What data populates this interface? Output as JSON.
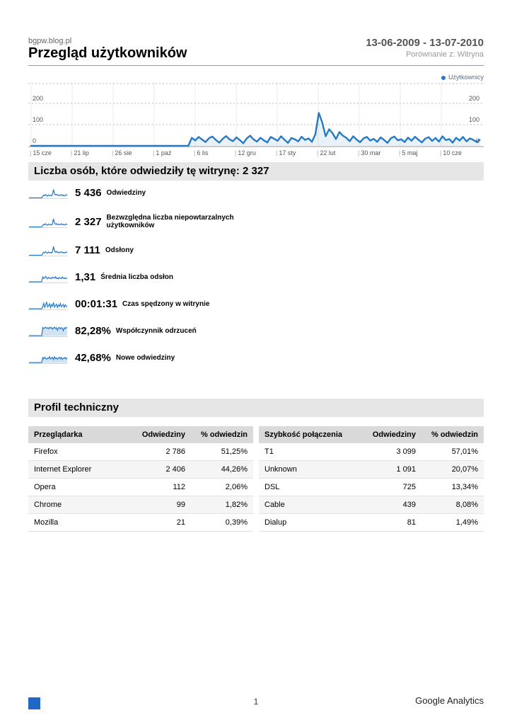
{
  "page": {
    "site": "bgpw.blog.pl",
    "title": "Przegląd użytkowników",
    "date_range": "13-06-2009 - 13-07-2010",
    "comparison": "Porównanie z: Witryna",
    "page_number": "1",
    "footer_brand": "Google Analytics"
  },
  "colors": {
    "accent": "#2779c4",
    "spark_fill": "#cfe3f5",
    "section_bg": "#e6e6e6",
    "table_header_bg": "#d9d9d9",
    "grid": "#bbbbbb"
  },
  "chart_data": {
    "type": "line",
    "title": "Użytkownicy",
    "legend": [
      "Użytkownicy"
    ],
    "legend_position": "top-right",
    "xlabel": "",
    "ylabel": "",
    "x_ticks": [
      "15 cze",
      "21 lip",
      "26 sie",
      "1 paź",
      "6 lis",
      "12 gru",
      "17 sty",
      "22 lut",
      "30 mar",
      "5 maj",
      "10 cze"
    ],
    "y_ticks": [
      0,
      100,
      200
    ],
    "ylim": [
      0,
      300
    ],
    "grid": true,
    "series_name": "Użytkownicy",
    "values": [
      0,
      0,
      0,
      0,
      0,
      0,
      0,
      0,
      0,
      0,
      0,
      0,
      0,
      0,
      0,
      0,
      0,
      0,
      0,
      0,
      0,
      0,
      0,
      0,
      0,
      0,
      0,
      0,
      0,
      0,
      0,
      0,
      0,
      0,
      0,
      0,
      0,
      0,
      0,
      0,
      0,
      0,
      0,
      0,
      0,
      0,
      0,
      38,
      25,
      42,
      30,
      18,
      36,
      44,
      28,
      15,
      33,
      46,
      31,
      22,
      40,
      27,
      12,
      35,
      48,
      30,
      20,
      38,
      26,
      16,
      42,
      33,
      24,
      45,
      29,
      14,
      37,
      31,
      21,
      43,
      28,
      35,
      19,
      55,
      155,
      110,
      45,
      78,
      60,
      32,
      65,
      48,
      38,
      22,
      45,
      30,
      17,
      35,
      42,
      25,
      33,
      19,
      40,
      28,
      14,
      36,
      44,
      26,
      31,
      18,
      39,
      24,
      43,
      29,
      16,
      34,
      41,
      23,
      37,
      20,
      45,
      27,
      32,
      15,
      38,
      25,
      42,
      21,
      35,
      28,
      18,
      30
    ]
  },
  "visitors_section": {
    "title": "Liczba osób, które odwiedziły tę witrynę: 2 327"
  },
  "metrics": [
    {
      "value": "5 436",
      "label": "Odwiedziny",
      "filled": false,
      "spark": [
        0,
        0,
        0,
        0,
        0,
        0,
        0,
        0,
        0,
        0,
        0,
        0,
        0,
        0,
        18,
        30,
        22,
        35,
        26,
        19,
        32,
        24,
        28,
        21,
        33,
        88,
        45,
        30,
        38,
        26,
        32,
        22,
        28,
        35,
        24,
        30,
        20,
        27,
        33,
        25
      ]
    },
    {
      "value": "2 327",
      "label": "Bezwzględna liczba niepowtarzalnych użytkowników",
      "filled": false,
      "spark": [
        0,
        0,
        0,
        0,
        0,
        0,
        0,
        0,
        0,
        0,
        0,
        0,
        0,
        0,
        16,
        28,
        20,
        33,
        24,
        18,
        30,
        22,
        26,
        20,
        31,
        85,
        42,
        28,
        35,
        24,
        30,
        21,
        26,
        33,
        22,
        28,
        19,
        25,
        31,
        23
      ]
    },
    {
      "value": "7 111",
      "label": "Odsłony",
      "filled": false,
      "spark": [
        0,
        0,
        0,
        0,
        0,
        0,
        0,
        0,
        0,
        0,
        0,
        0,
        0,
        0,
        20,
        32,
        24,
        38,
        28,
        20,
        34,
        26,
        30,
        22,
        36,
        92,
        48,
        32,
        40,
        28,
        34,
        24,
        30,
        37,
        26,
        32,
        22,
        29,
        35,
        27
      ]
    },
    {
      "value": "1,31",
      "label": "Średnia liczba odsłon",
      "filled": false,
      "spark": [
        4,
        4,
        4,
        4,
        4,
        4,
        4,
        4,
        4,
        4,
        4,
        4,
        4,
        4,
        55,
        38,
        46,
        60,
        42,
        35,
        50,
        40,
        44,
        36,
        52,
        48,
        41,
        56,
        38,
        45,
        34,
        49,
        42,
        37,
        53,
        40,
        46,
        35,
        44,
        39
      ]
    },
    {
      "value": "00:01:31",
      "label": "Czas spędzony w witrynie",
      "filled": false,
      "spark": [
        3,
        3,
        3,
        3,
        3,
        3,
        3,
        3,
        3,
        3,
        3,
        3,
        3,
        3,
        25,
        60,
        18,
        40,
        75,
        22,
        35,
        55,
        15,
        45,
        30,
        68,
        20,
        38,
        52,
        16,
        42,
        28,
        58,
        24,
        36,
        48,
        18,
        44,
        30,
        22
      ]
    },
    {
      "value": "82,28%",
      "label": "Współczynnik odrzuceń",
      "filled": true,
      "spark": [
        3,
        3,
        3,
        3,
        3,
        3,
        3,
        3,
        3,
        3,
        3,
        3,
        3,
        3,
        88,
        78,
        85,
        92,
        80,
        86,
        75,
        90,
        82,
        88,
        70,
        84,
        91,
        77,
        86,
        60,
        83,
        89,
        74,
        87,
        80,
        55,
        85,
        78,
        90,
        82
      ]
    },
    {
      "value": "42,68%",
      "label": "Nowe odwiedziny",
      "filled": true,
      "spark": [
        3,
        3,
        3,
        3,
        3,
        3,
        3,
        3,
        3,
        3,
        3,
        3,
        3,
        3,
        55,
        42,
        60,
        48,
        38,
        52,
        45,
        65,
        40,
        50,
        58,
        35,
        62,
        44,
        54,
        38,
        48,
        60,
        42,
        56,
        36,
        50,
        46,
        58,
        40,
        52
      ]
    }
  ],
  "technical_section": {
    "title": "Profil techniczny",
    "tables": [
      {
        "headers": [
          "Przeglądarka",
          "Odwiedziny",
          "% odwiedzin"
        ],
        "rows": [
          [
            "Firefox",
            "2 786",
            "51,25%"
          ],
          [
            "Internet Explorer",
            "2 406",
            "44,26%"
          ],
          [
            "Opera",
            "112",
            "2,06%"
          ],
          [
            "Chrome",
            "99",
            "1,82%"
          ],
          [
            "Mozilla",
            "21",
            "0,39%"
          ]
        ]
      },
      {
        "headers": [
          "Szybkość połączenia",
          "Odwiedziny",
          "% odwiedzin"
        ],
        "rows": [
          [
            "T1",
            "3 099",
            "57,01%"
          ],
          [
            "Unknown",
            "1 091",
            "20,07%"
          ],
          [
            "DSL",
            "725",
            "13,34%"
          ],
          [
            "Cable",
            "439",
            "8,08%"
          ],
          [
            "Dialup",
            "81",
            "1,49%"
          ]
        ]
      }
    ]
  }
}
